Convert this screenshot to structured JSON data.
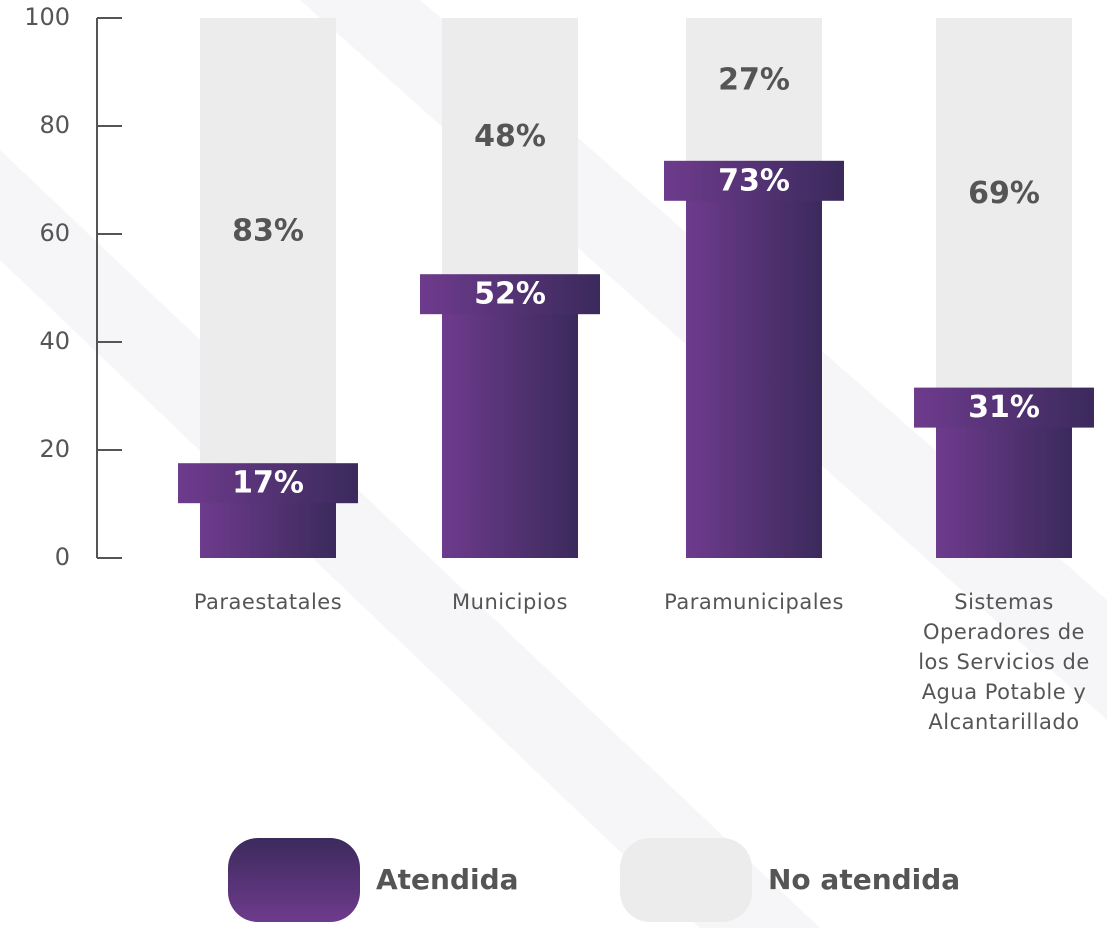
{
  "chart_data": {
    "type": "stacked_bar",
    "categories": [
      "Paraestatales",
      "Municipios",
      "Paramunicipales",
      "Sistemas Operadores de los Servicios de Agua Potable y Alcantarillado"
    ],
    "series": [
      {
        "name": "Atendida",
        "color": "#5a3380",
        "values": [
          17,
          52,
          73,
          31
        ],
        "value_labels": [
          "17%",
          "52%",
          "73%",
          "31%"
        ]
      },
      {
        "name": "No atendida",
        "color": "#ececec",
        "values": [
          83,
          48,
          27,
          69
        ],
        "value_labels": [
          "83%",
          "48%",
          "27%",
          "69%"
        ]
      }
    ],
    "ylim": [
      0,
      100
    ],
    "yticks": [
      0,
      20,
      40,
      60,
      80,
      100
    ]
  }
}
